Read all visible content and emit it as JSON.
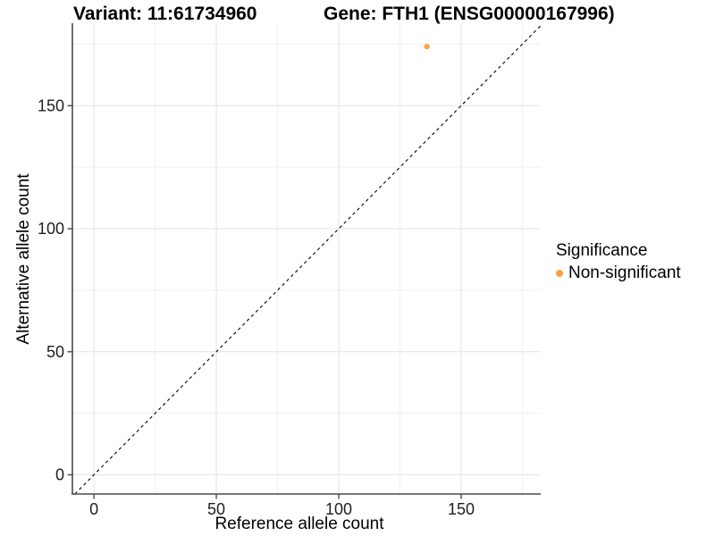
{
  "chart_data": {
    "type": "scatter",
    "title_left": "Variant: 11:61734960",
    "title_right": "Gene: FTH1 (ENSG00000167996)",
    "xlabel": "Reference allele count",
    "ylabel": "Alternative allele count",
    "xlim": [
      -8.8,
      182.5
    ],
    "ylim": [
      -7.8,
      183.5
    ],
    "x_ticks": [
      0,
      50,
      100,
      150
    ],
    "y_ticks": [
      0,
      50,
      100,
      150
    ],
    "x_minor_ticks": [
      25,
      75,
      125,
      175
    ],
    "y_minor_ticks": [
      25,
      75,
      125,
      175
    ],
    "grid": "on",
    "reference_line": {
      "kind": "identity",
      "equation": "y = x",
      "style": "dashed",
      "color": "#000000"
    },
    "series": [
      {
        "name": "Non-significant",
        "color": "#F8A23E",
        "points": [
          {
            "x": 136,
            "y": 174
          }
        ]
      }
    ],
    "legend": {
      "title": "Significance",
      "position": "right",
      "items": [
        {
          "label": "Non-significant",
          "color": "#F8A23E"
        }
      ]
    },
    "colors": {
      "grid_major": "#E3E3E3",
      "grid_minor": "#F1F1F1",
      "axis": "#4A4A4A",
      "tick_label": "#1F1F1F",
      "point": "#F8A23E",
      "dashed_line": "#000000"
    }
  }
}
